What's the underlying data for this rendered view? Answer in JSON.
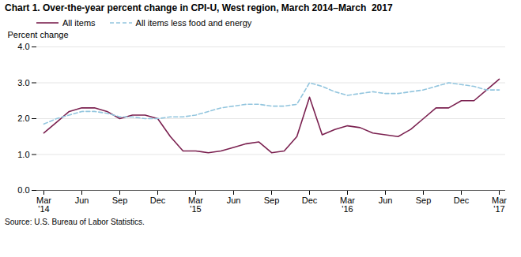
{
  "chart_data": {
    "type": "line",
    "title": "Chart 1. Over-the-year percent change in CPI-U, West region, March 2014–March  2017",
    "ylabel": "Percent change",
    "source": "Source: U.S. Bureau of Labor Statistics.",
    "categories": [
      "Mar\n'14",
      null,
      null,
      "Jun",
      null,
      null,
      "Sep",
      null,
      null,
      "Dec",
      null,
      null,
      "Mar\n'15",
      null,
      null,
      "Jun",
      null,
      null,
      "Sep",
      null,
      null,
      "Dec",
      null,
      null,
      "Mar\n'16",
      null,
      null,
      "Jun",
      null,
      null,
      "Sep",
      null,
      null,
      "Dec",
      null,
      null,
      "Mar\n'17"
    ],
    "series": [
      {
        "name": "All items",
        "color": "#7B2150",
        "line_style": "solid",
        "values": [
          1.6,
          1.9,
          2.2,
          2.3,
          2.3,
          2.2,
          2.0,
          2.1,
          2.1,
          2.0,
          1.5,
          1.1,
          1.1,
          1.05,
          1.1,
          1.2,
          1.3,
          1.35,
          1.05,
          1.1,
          1.5,
          2.6,
          1.55,
          1.7,
          1.8,
          1.75,
          1.6,
          1.55,
          1.5,
          1.7,
          2.0,
          2.3,
          2.3,
          2.5,
          2.5,
          2.8,
          3.1
        ]
      },
      {
        "name": "All items less food and energy",
        "color": "#92C5DE",
        "line_style": "dashed",
        "values": [
          1.85,
          2.0,
          2.1,
          2.2,
          2.2,
          2.15,
          2.05,
          2.05,
          2.0,
          2.0,
          2.05,
          2.05,
          2.1,
          2.2,
          2.3,
          2.35,
          2.4,
          2.4,
          2.35,
          2.35,
          2.4,
          3.0,
          2.9,
          2.75,
          2.65,
          2.7,
          2.75,
          2.7,
          2.7,
          2.75,
          2.8,
          2.9,
          3.0,
          2.95,
          2.9,
          2.8,
          2.8
        ]
      }
    ],
    "ylim": [
      0.0,
      4.0
    ],
    "yticks": [
      {
        "value": 0.0,
        "label": "0.0"
      },
      {
        "value": 1.0,
        "label": "1.0"
      },
      {
        "value": 2.0,
        "label": "2.0"
      },
      {
        "value": 3.0,
        "label": "3.0"
      },
      {
        "value": 4.0,
        "label": "4.0"
      }
    ],
    "grid": true,
    "legend": "upper left"
  }
}
